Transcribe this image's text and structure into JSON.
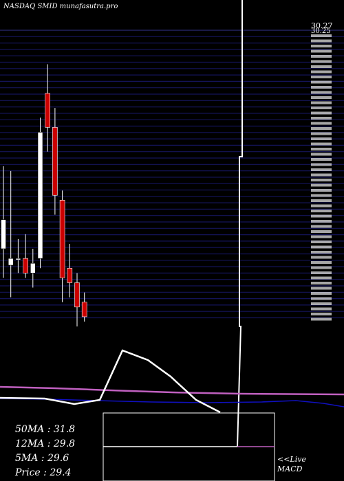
{
  "header": {
    "title": "NASDAQ SMID munafasutra.pro"
  },
  "chart_data": {
    "type": "candlestick",
    "title": "NASDAQ SMID munafasutra.pro",
    "price_axis_labels": [
      "30.27",
      "30.25"
    ],
    "ylim": [
      28.5,
      31.5
    ],
    "candles": [
      {
        "o": 29.55,
        "h": 30.1,
        "l": 28.95,
        "c": 29.25,
        "color": "white"
      },
      {
        "o": 29.15,
        "h": 30.05,
        "l": 28.75,
        "c": 29.08,
        "color": "white"
      },
      {
        "o": 29.15,
        "h": 29.35,
        "l": 29.0,
        "c": 29.15,
        "color": "white"
      },
      {
        "o": 29.15,
        "h": 29.4,
        "l": 28.95,
        "c": 29.0,
        "color": "red"
      },
      {
        "o": 29.0,
        "h": 29.25,
        "l": 28.85,
        "c": 29.1,
        "color": "white"
      },
      {
        "o": 29.15,
        "h": 30.6,
        "l": 29.05,
        "c": 30.45,
        "color": "white"
      },
      {
        "o": 30.85,
        "h": 31.15,
        "l": 30.25,
        "c": 30.5,
        "color": "red"
      },
      {
        "o": 30.5,
        "h": 30.7,
        "l": 29.6,
        "c": 29.8,
        "color": "red"
      },
      {
        "o": 29.75,
        "h": 29.85,
        "l": 28.7,
        "c": 28.95,
        "color": "red"
      },
      {
        "o": 29.05,
        "h": 29.3,
        "l": 28.75,
        "c": 28.9,
        "color": "red"
      },
      {
        "o": 28.9,
        "h": 29.0,
        "l": 28.45,
        "c": 28.65,
        "color": "red"
      },
      {
        "o": 28.7,
        "h": 28.8,
        "l": 28.5,
        "c": 28.55,
        "color": "red"
      }
    ],
    "indicators": {
      "ma50": 31.8,
      "ma12": 29.8,
      "ma5": 29.6,
      "price": 29.4
    },
    "macd_label": "MACD"
  },
  "legend": {
    "ma50": "50MA : 31.8",
    "ma12": "12MA : 29.8",
    "ma5": "5MA : 29.6",
    "price": "Price   : 29.4"
  },
  "live": {
    "prefix": "<<Live",
    "macd": "MACD"
  },
  "colors": {
    "background": "#000000",
    "grid": "#14145a",
    "bull": "#ffffff",
    "bear": "#cc0000",
    "ma_pink": "#c060c0",
    "ma_blue": "#1010c0"
  }
}
